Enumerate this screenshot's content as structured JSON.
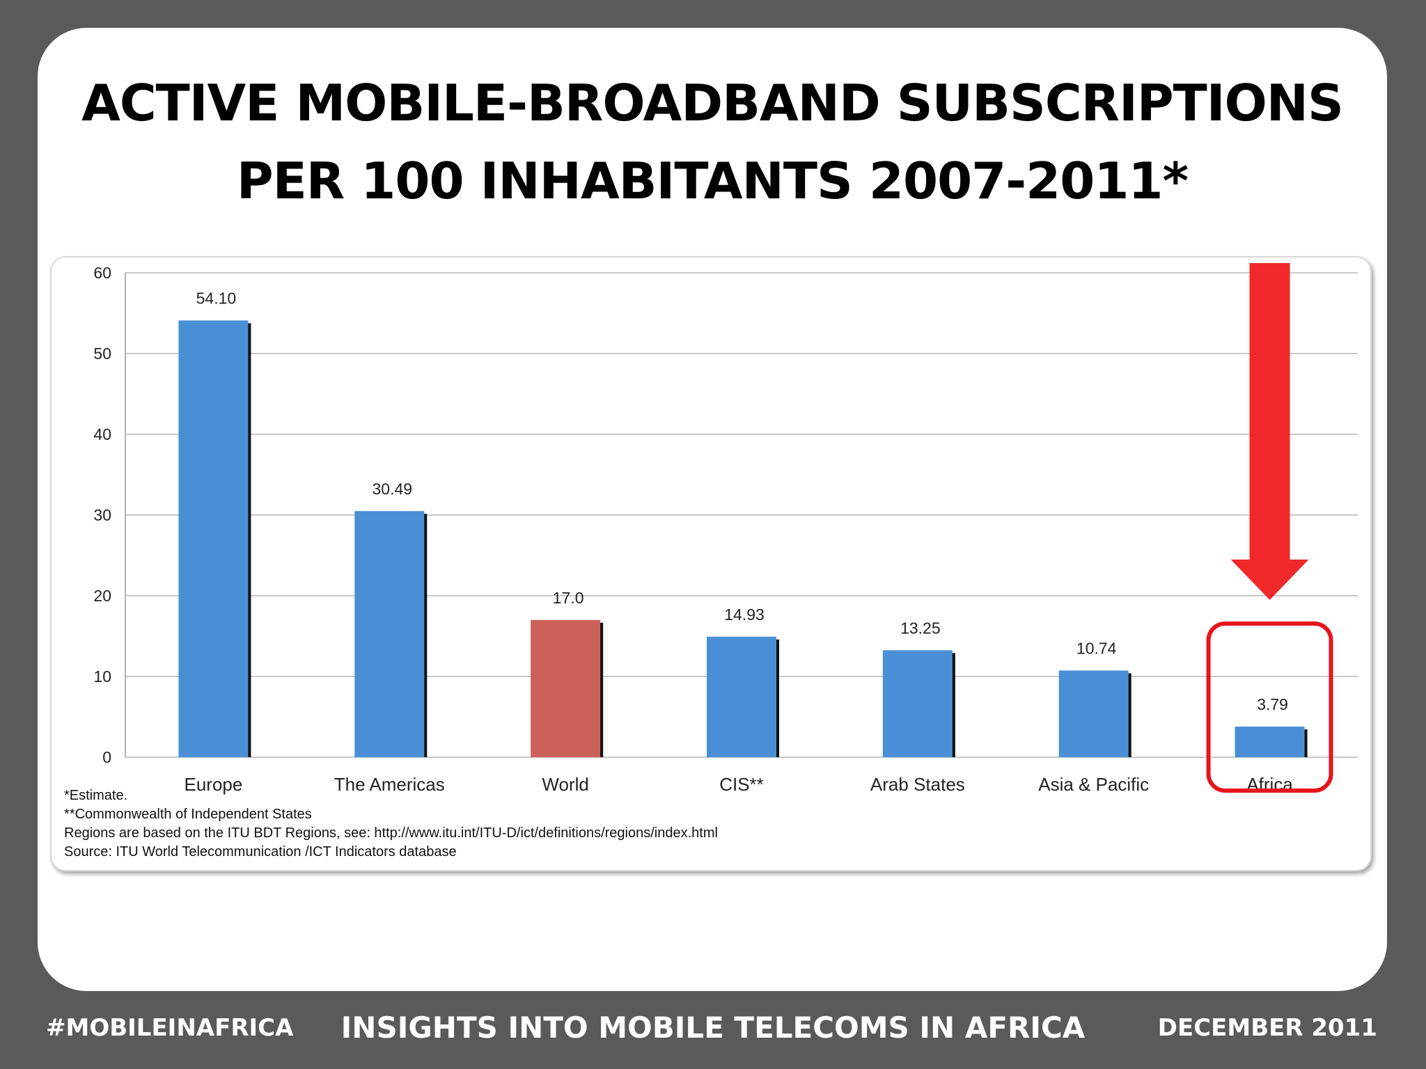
{
  "slide": {
    "title_line1": "ACTIVE MOBILE-BROADBAND SUBSCRIPTIONS",
    "title_line2": "PER 100 INHABITANTS 2007-2011*"
  },
  "chart_data": {
    "type": "bar",
    "title": "",
    "xlabel": "",
    "ylabel": "",
    "categories": [
      "Europe",
      "The Americas",
      "World",
      "CIS**",
      "Arab States",
      "Asia & Pacific",
      "Africa"
    ],
    "values": [
      54.1,
      30.49,
      17.0,
      14.93,
      13.25,
      10.74,
      3.79
    ],
    "value_labels": [
      "54.10",
      "30.49",
      "17.0",
      "14.93",
      "13.25",
      "10.74",
      "3.79"
    ],
    "bar_colors": [
      "#4a8fd6",
      "#4a8fd6",
      "#cc6159",
      "#4a8fd6",
      "#4a8fd6",
      "#4a8fd6",
      "#4a8fd6"
    ],
    "ylim": [
      0,
      60
    ],
    "yticks": [
      "0",
      "10",
      "20",
      "30",
      "40",
      "50",
      "60"
    ],
    "grid": true,
    "highlight_category": "Africa",
    "highlight_color": "#e8141c",
    "arrow_color": "#f0282a"
  },
  "notes": {
    "line1": "*Estimate.",
    "line2": "**Commonwealth of Independent States",
    "line3": "Regions are based on the ITU BDT Regions, see: http://www.itu.int/ITU-D/ict/definitions/regions/index.html",
    "line4": "Source:  ITU World Telecommunication /ICT Indicators database"
  },
  "footer": {
    "left": "#MOBILEINAFRICA",
    "center": "INSIGHTS INTO MOBILE TELECOMS IN AFRICA",
    "right": "DECEMBER 2011"
  }
}
